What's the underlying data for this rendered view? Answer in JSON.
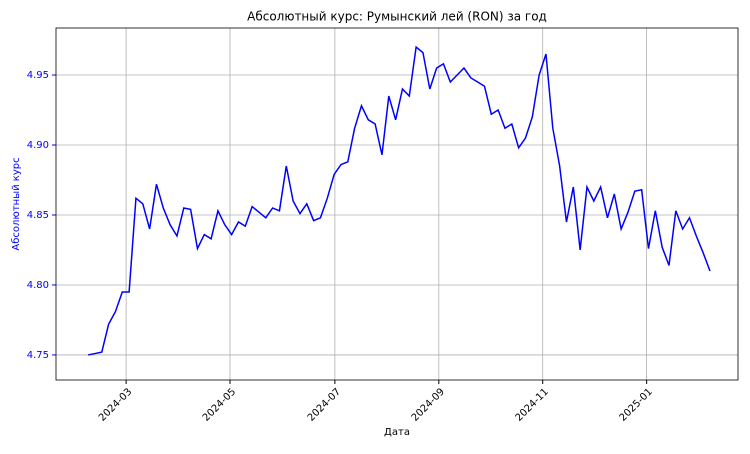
{
  "chart_data": {
    "type": "line",
    "title": "Абсолютный курс: Румынский лей (RON) за год",
    "x_label": "Дата",
    "y_label": "Абсолютный курс",
    "series": [
      {
        "name": "RON",
        "color": "#0000ff",
        "values": [
          4.75,
          4.751,
          4.752,
          4.772,
          4.781,
          4.795,
          4.795,
          4.862,
          4.858,
          4.84,
          4.872,
          4.855,
          4.843,
          4.835,
          4.855,
          4.854,
          4.826,
          4.836,
          4.833,
          4.853,
          4.843,
          4.836,
          4.845,
          4.842,
          4.856,
          4.852,
          4.848,
          4.855,
          4.853,
          4.885,
          4.86,
          4.851,
          4.858,
          4.846,
          4.848,
          4.862,
          4.879,
          4.886,
          4.888,
          4.912,
          4.928,
          4.918,
          4.915,
          4.893,
          4.935,
          4.918,
          4.94,
          4.935,
          4.97,
          4.966,
          4.94,
          4.955,
          4.958,
          4.945,
          4.95,
          4.955,
          4.948,
          4.945,
          4.942,
          4.922,
          4.925,
          4.912,
          4.915,
          4.898,
          4.905,
          4.92,
          4.95,
          4.965,
          4.912,
          4.885,
          4.845,
          4.87,
          4.825,
          4.87,
          4.86,
          4.87,
          4.848,
          4.865,
          4.84,
          4.852,
          4.867,
          4.868,
          4.826,
          4.853,
          4.827,
          4.814,
          4.853,
          4.84,
          4.848,
          4.835,
          4.823,
          4.81
        ]
      }
    ],
    "xlim": [
      -4.7,
      95.1
    ],
    "xticks": [
      {
        "value": 5.56,
        "label": "2024-03"
      },
      {
        "value": 20.76,
        "label": "2024-05"
      },
      {
        "value": 36.11,
        "label": "2024-07"
      },
      {
        "value": 51.32,
        "label": "2024-09"
      },
      {
        "value": 66.52,
        "label": "2024-11"
      },
      {
        "value": 81.73,
        "label": "2025-01"
      }
    ],
    "ylim": [
      4.7321,
      4.9836
    ],
    "yticks": [
      4.75,
      {
        "value": 4.8,
        "label": "4.80"
      },
      4.85,
      {
        "value": 4.9,
        "label": "4.90"
      },
      4.95
    ],
    "grid": true
  }
}
